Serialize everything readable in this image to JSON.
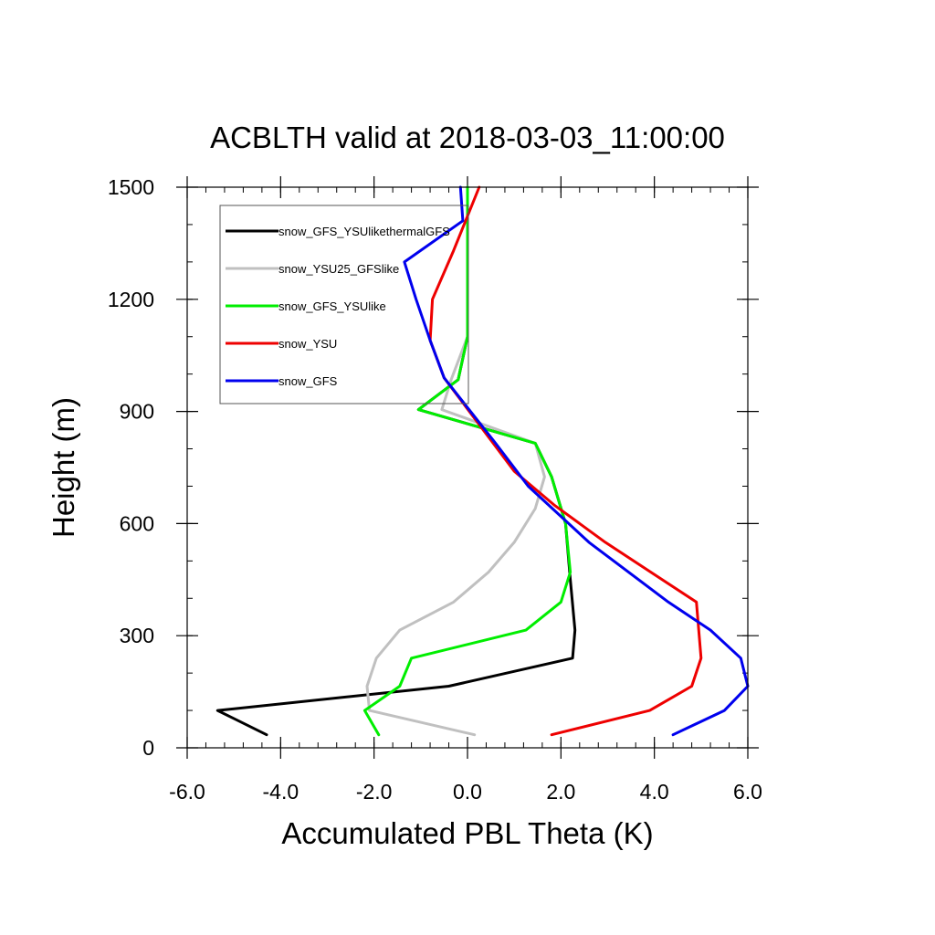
{
  "chart_data": {
    "type": "line",
    "title": "ACBLTH valid at 2018-03-03_11:00:00",
    "xlabel": "Accumulated PBL Theta (K)",
    "ylabel": "Height (m)",
    "xlim": [
      -6.0,
      6.0
    ],
    "ylim": [
      0,
      1500
    ],
    "xticks": [
      -6.0,
      -4.0,
      -2.0,
      0.0,
      2.0,
      4.0,
      6.0
    ],
    "xtick_labels": [
      "-6.0",
      "-4.0",
      "-2.0",
      "0.0",
      "2.0",
      "4.0",
      "6.0"
    ],
    "yticks": [
      0,
      300,
      600,
      900,
      1200,
      1500
    ],
    "ytick_labels": [
      "0",
      "300",
      "600",
      "900",
      "1200",
      "1500"
    ],
    "x_minor_step": 0.4,
    "y_minor_step": 100,
    "grid": false,
    "legend_position": "top-left",
    "series": [
      {
        "name": "snow_GFS_YSUlikethermalGFS",
        "color": "#000000",
        "x": [
          -4.3,
          -5.35,
          -0.4,
          2.25,
          2.3,
          2.2,
          2.1,
          1.8,
          1.45,
          -1.05,
          -0.2,
          0.0,
          0.0,
          0.0,
          0.0
        ],
        "y": [
          35,
          100,
          165,
          240,
          315,
          450,
          600,
          725,
          815,
          905,
          985,
          1100,
          1200,
          1300,
          1500
        ]
      },
      {
        "name": "snow_YSU25_GFSlike",
        "color": "#c0c0c0",
        "x": [
          0.15,
          -2.1,
          -2.15,
          -1.95,
          -1.45,
          -0.3,
          0.45,
          1.0,
          1.45,
          1.65,
          1.45,
          -0.55,
          -0.35,
          0.0,
          0.0,
          0.0,
          0.0
        ],
        "y": [
          35,
          100,
          165,
          240,
          315,
          390,
          470,
          550,
          640,
          725,
          815,
          905,
          985,
          1100,
          1200,
          1300,
          1500
        ]
      },
      {
        "name": "snow_GFS_YSUlike",
        "color": "#00ee00",
        "x": [
          -1.9,
          -2.2,
          -1.45,
          -1.2,
          1.25,
          2.0,
          2.2,
          2.1,
          1.8,
          1.45,
          -1.05,
          -0.2,
          0.0,
          0.0,
          0.0,
          0.0
        ],
        "y": [
          35,
          100,
          165,
          240,
          315,
          390,
          470,
          600,
          725,
          815,
          905,
          985,
          1100,
          1200,
          1300,
          1500
        ]
      },
      {
        "name": "snow_YSU",
        "color": "#ee0000",
        "x": [
          1.8,
          3.9,
          4.8,
          5.0,
          4.9,
          2.95,
          1.85,
          1.0,
          -0.5,
          -0.8,
          -0.75,
          -0.3,
          0.25
        ],
        "y": [
          35,
          100,
          165,
          240,
          390,
          550,
          650,
          740,
          990,
          1090,
          1200,
          1330,
          1500
        ]
      },
      {
        "name": "snow_GFS",
        "color": "#0000ee",
        "x": [
          4.4,
          5.5,
          6.0,
          5.85,
          5.2,
          4.3,
          2.6,
          1.3,
          0.6,
          -0.5,
          -0.8,
          -1.1,
          -1.35,
          -0.1,
          -0.15
        ],
        "y": [
          35,
          100,
          165,
          240,
          315,
          390,
          550,
          700,
          815,
          990,
          1090,
          1200,
          1300,
          1410,
          1500
        ]
      }
    ]
  }
}
